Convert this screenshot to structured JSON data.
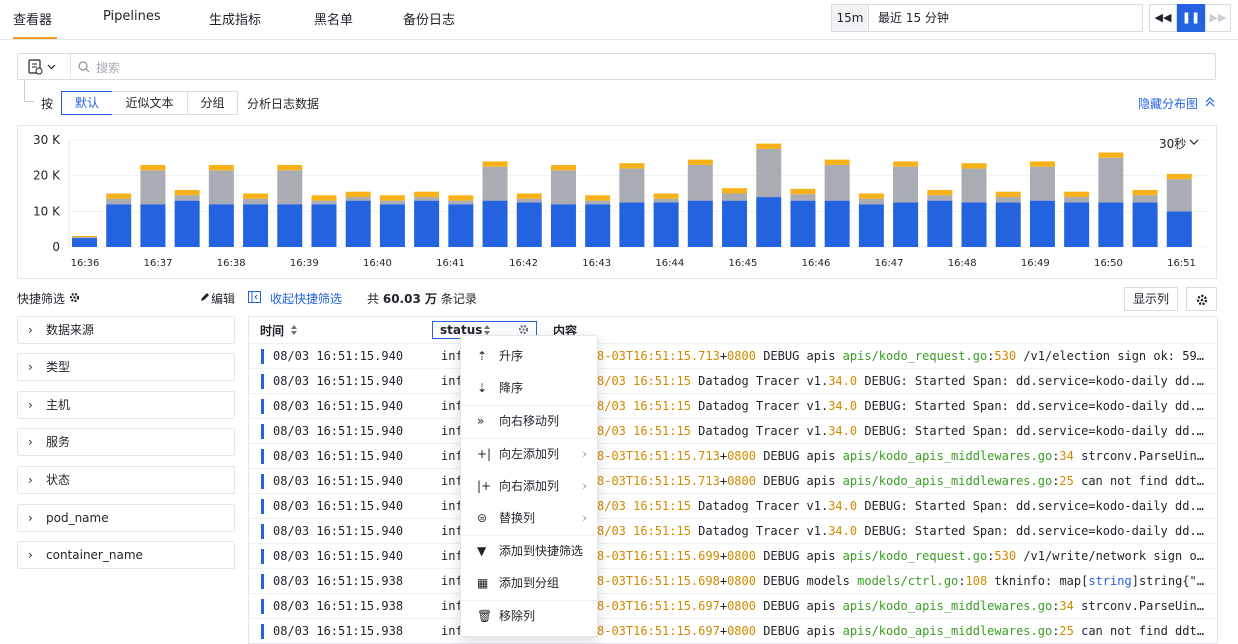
{
  "nav": {
    "tabs": [
      "查看器",
      "Pipelines",
      "生成指标",
      "黑名单",
      "备份日志"
    ]
  },
  "timerange": {
    "chip": "15m",
    "label": "最近 15 分钟"
  },
  "player": {
    "prev": "◀◀",
    "pause": "❚❚",
    "next": "▶▶"
  },
  "search": {
    "placeholder": "搜索"
  },
  "group": {
    "prefix": "按",
    "options": [
      "默认",
      "近似文本",
      "分组"
    ],
    "suffix": "分析日志数据",
    "hide_label": "隐藏分布图"
  },
  "chart_data": {
    "type": "bar",
    "stacked": true,
    "interval_label": "30秒",
    "yticks": [
      "30 K",
      "20 K",
      "10 K",
      "0"
    ],
    "ylim": [
      0,
      30000
    ],
    "xticks": [
      "16:36",
      "16:37",
      "16:38",
      "16:39",
      "16:40",
      "16:41",
      "16:42",
      "16:43",
      "16:44",
      "16:45",
      "16:46",
      "16:47",
      "16:48",
      "16:49",
      "16:50",
      "16:51"
    ],
    "colors": {
      "info": "#2463e0",
      "debug": "#a9acb2",
      "warn": "#f7b21b"
    },
    "series": [
      {
        "values": [
          2500,
          12000,
          12000,
          13000,
          12000,
          12000,
          12000,
          12000,
          13000,
          12000,
          13000,
          12000,
          13000,
          12500,
          12000,
          12000,
          12500,
          12500,
          13000,
          13000,
          14000,
          13000,
          13000,
          12000,
          12500,
          13000,
          12500,
          12500,
          13000,
          12500,
          12500,
          12500,
          10000
        ]
      },
      {
        "values": [
          300,
          1500,
          9500,
          1500,
          9500,
          1500,
          9500,
          1000,
          1000,
          1000,
          1000,
          1000,
          9500,
          1000,
          9500,
          1000,
          9500,
          1000,
          10000,
          2000,
          13500,
          1800,
          10000,
          1500,
          10000,
          1500,
          9500,
          1500,
          9500,
          1500,
          12500,
          2000,
          9000
        ]
      },
      {
        "values": [
          300,
          1500,
          1500,
          1500,
          1500,
          1500,
          1500,
          1500,
          1500,
          1500,
          1500,
          1500,
          1500,
          1500,
          1500,
          1500,
          1500,
          1500,
          1500,
          1500,
          1500,
          1500,
          1500,
          1500,
          1500,
          1500,
          1500,
          1500,
          1500,
          1500,
          1500,
          1500,
          1500
        ]
      }
    ]
  },
  "quickfilter": {
    "title": "快捷筛选",
    "edit": "编辑",
    "collapse": "收起快捷筛选",
    "items": [
      "数据来源",
      "类型",
      "主机",
      "服务",
      "状态",
      "pod_name",
      "container_name"
    ]
  },
  "records": {
    "prefix": "共",
    "count": "60.03 万",
    "suffix": "条记录"
  },
  "columns_button": "显示列",
  "table": {
    "headers": {
      "time": "时间",
      "status": "status",
      "content": "内容"
    },
    "rows": [
      {
        "time": "08/03 16:51:15.940",
        "status": "inf"
      },
      {
        "time": "08/03 16:51:15.940",
        "status": "inf"
      },
      {
        "time": "08/03 16:51:15.940",
        "status": "inf"
      },
      {
        "time": "08/03 16:51:15.940",
        "status": "inf"
      },
      {
        "time": "08/03 16:51:15.940",
        "status": "inf"
      },
      {
        "time": "08/03 16:51:15.940",
        "status": "inf"
      },
      {
        "time": "08/03 16:51:15.940",
        "status": "inf"
      },
      {
        "time": "08/03 16:51:15.940",
        "status": "inf"
      },
      {
        "time": "08/03 16:51:15.940",
        "status": "inf"
      },
      {
        "time": "08/03 16:51:15.938",
        "status": "inf"
      },
      {
        "time": "08/03 16:51:15.938",
        "status": "inf"
      },
      {
        "time": "08/03 16:51:15.938",
        "status": "inf"
      }
    ]
  },
  "menu": {
    "items": [
      "升序",
      "降序",
      "向右移动列",
      "向左添加列",
      "向右添加列",
      "替换列",
      "添加到快捷筛选",
      "添加到分组",
      "移除列"
    ]
  }
}
